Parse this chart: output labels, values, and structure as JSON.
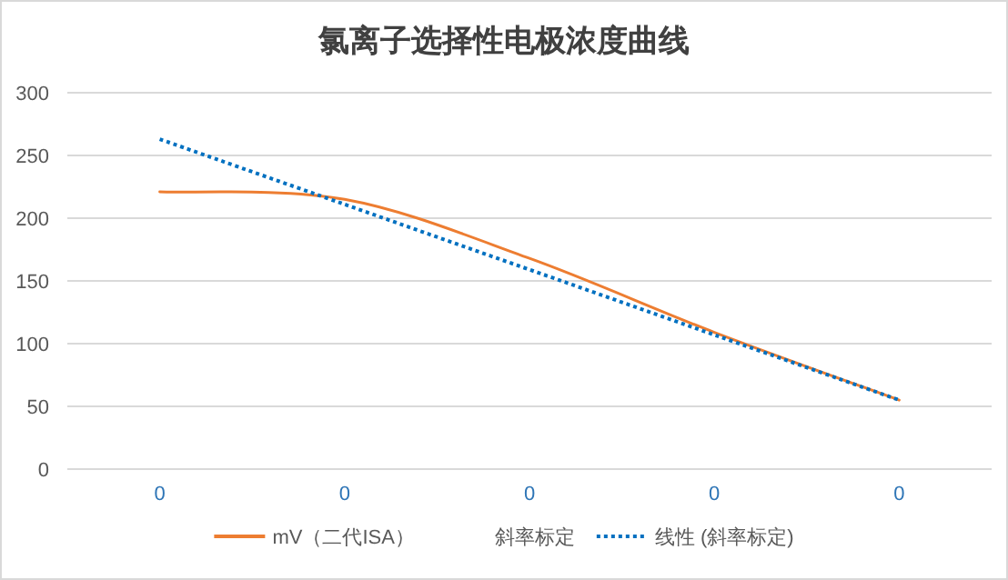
{
  "chart_data": {
    "type": "line",
    "title": "氯离子选择性电极浓度曲线",
    "categories": [
      "0",
      "0",
      "0",
      "0",
      "0"
    ],
    "series": [
      {
        "name": "mV（二代ISA）",
        "color": "#ed7d31",
        "values": [
          221,
          215,
          168,
          109,
          55
        ],
        "line_style": "solid"
      },
      {
        "name": "斜率标定",
        "values": [
          null,
          null,
          null,
          null,
          null
        ]
      },
      {
        "name": "线性 (斜率标定)",
        "color": "#0070c0",
        "values": [
          263,
          211,
          159,
          107,
          55
        ],
        "line_style": "dotted"
      }
    ],
    "ylim": [
      0,
      300
    ],
    "yticks": [
      0,
      50,
      100,
      150,
      200,
      250,
      300
    ],
    "grid": "y",
    "legend": "bottom",
    "marker": "none"
  }
}
